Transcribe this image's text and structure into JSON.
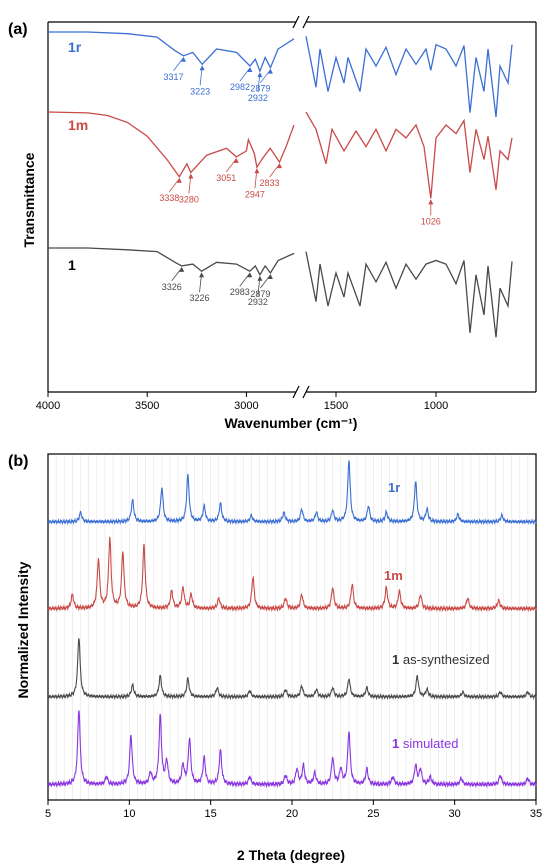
{
  "figure": {
    "panel_a_label": "(a)",
    "panel_b_label": "(b)"
  },
  "chart_data": [
    {
      "type": "line",
      "panel": "(a)",
      "xlabel": "Wavenumber (cm⁻¹)",
      "ylabel": "Transmittance",
      "x_reversed": true,
      "xlim": [
        4000,
        500
      ],
      "axis_break": [
        2750,
        1650
      ],
      "x_ticks": [
        4000,
        3500,
        3000,
        1500,
        1000
      ],
      "y_ticks": [],
      "grid": false,
      "series": [
        {
          "name": "1r",
          "color": "#3b6fd4",
          "name_color": "#3b6fd4",
          "points": [
            [
              4000,
              1.0
            ],
            [
              3800,
              1.0
            ],
            [
              3600,
              0.98
            ],
            [
              3450,
              0.94
            ],
            [
              3360,
              0.78
            ],
            [
              3317,
              0.72
            ],
            [
              3270,
              0.76
            ],
            [
              3223,
              0.62
            ],
            [
              3150,
              0.8
            ],
            [
              3050,
              0.76
            ],
            [
              2982,
              0.6
            ],
            [
              2955,
              0.68
            ],
            [
              2932,
              0.54
            ],
            [
              2905,
              0.7
            ],
            [
              2879,
              0.58
            ],
            [
              2840,
              0.8
            ],
            [
              2760,
              0.92
            ],
            [
              1650,
              0.95
            ],
            [
              1600,
              0.35
            ],
            [
              1580,
              0.8
            ],
            [
              1540,
              0.3
            ],
            [
              1500,
              0.7
            ],
            [
              1460,
              0.4
            ],
            [
              1440,
              0.7
            ],
            [
              1380,
              0.3
            ],
            [
              1350,
              0.8
            ],
            [
              1300,
              0.6
            ],
            [
              1250,
              0.82
            ],
            [
              1200,
              0.5
            ],
            [
              1150,
              0.8
            ],
            [
              1100,
              0.62
            ],
            [
              1050,
              0.8
            ],
            [
              1026,
              0.55
            ],
            [
              1000,
              0.85
            ],
            [
              950,
              0.8
            ],
            [
              900,
              0.6
            ],
            [
              860,
              0.84
            ],
            [
              830,
              0.05
            ],
            [
              800,
              0.7
            ],
            [
              760,
              0.3
            ],
            [
              740,
              0.8
            ],
            [
              700,
              0.0
            ],
            [
              680,
              0.6
            ],
            [
              640,
              0.4
            ],
            [
              620,
              0.85
            ]
          ],
          "annotations": [
            {
              "label": "3317",
              "x": 3317
            },
            {
              "label": "3223",
              "x": 3223
            },
            {
              "label": "2982",
              "x": 2982
            },
            {
              "label": "2932",
              "x": 2932
            },
            {
              "label": "2879",
              "x": 2879
            }
          ]
        },
        {
          "name": "1m",
          "color": "#c94a46",
          "name_color": "#c94a46",
          "points": [
            [
              4000,
              1.0
            ],
            [
              3800,
              0.99
            ],
            [
              3700,
              0.96
            ],
            [
              3600,
              0.88
            ],
            [
              3500,
              0.72
            ],
            [
              3400,
              0.45
            ],
            [
              3338,
              0.25
            ],
            [
              3300,
              0.4
            ],
            [
              3280,
              0.3
            ],
            [
              3200,
              0.5
            ],
            [
              3100,
              0.58
            ],
            [
              3051,
              0.48
            ],
            [
              3000,
              0.55
            ],
            [
              2990,
              0.68
            ],
            [
              2960,
              0.52
            ],
            [
              2947,
              0.36
            ],
            [
              2920,
              0.46
            ],
            [
              2880,
              0.58
            ],
            [
              2833,
              0.42
            ],
            [
              2800,
              0.6
            ],
            [
              2760,
              0.85
            ],
            [
              1650,
              1.0
            ],
            [
              1600,
              0.8
            ],
            [
              1550,
              0.4
            ],
            [
              1520,
              0.8
            ],
            [
              1460,
              0.55
            ],
            [
              1400,
              0.78
            ],
            [
              1350,
              0.6
            ],
            [
              1300,
              0.8
            ],
            [
              1250,
              0.55
            ],
            [
              1200,
              0.8
            ],
            [
              1150,
              0.7
            ],
            [
              1100,
              0.85
            ],
            [
              1060,
              0.6
            ],
            [
              1026,
              0.0
            ],
            [
              1000,
              0.7
            ],
            [
              950,
              0.85
            ],
            [
              900,
              0.75
            ],
            [
              860,
              0.9
            ],
            [
              830,
              0.3
            ],
            [
              800,
              0.8
            ],
            [
              760,
              0.45
            ],
            [
              740,
              0.72
            ],
            [
              700,
              0.1
            ],
            [
              680,
              0.55
            ],
            [
              640,
              0.45
            ],
            [
              620,
              0.7
            ]
          ],
          "annotations": [
            {
              "label": "3338",
              "x": 3338
            },
            {
              "label": "3280",
              "x": 3280
            },
            {
              "label": "3051",
              "x": 3051
            },
            {
              "label": "2947",
              "x": 2947
            },
            {
              "label": "2833",
              "x": 2833
            },
            {
              "label": "1026",
              "x": 1026
            }
          ]
        },
        {
          "name": "1",
          "color": "#4a4a4a",
          "name_color": "#000000",
          "points": [
            [
              4000,
              1.0
            ],
            [
              3800,
              1.0
            ],
            [
              3600,
              0.98
            ],
            [
              3450,
              0.96
            ],
            [
              3360,
              0.84
            ],
            [
              3326,
              0.8
            ],
            [
              3270,
              0.82
            ],
            [
              3226,
              0.74
            ],
            [
              3150,
              0.84
            ],
            [
              3050,
              0.82
            ],
            [
              2983,
              0.74
            ],
            [
              2955,
              0.8
            ],
            [
              2932,
              0.7
            ],
            [
              2905,
              0.8
            ],
            [
              2879,
              0.72
            ],
            [
              2840,
              0.86
            ],
            [
              2760,
              0.94
            ],
            [
              1650,
              0.96
            ],
            [
              1600,
              0.4
            ],
            [
              1580,
              0.82
            ],
            [
              1540,
              0.35
            ],
            [
              1500,
              0.72
            ],
            [
              1460,
              0.45
            ],
            [
              1440,
              0.72
            ],
            [
              1380,
              0.35
            ],
            [
              1350,
              0.82
            ],
            [
              1300,
              0.62
            ],
            [
              1250,
              0.84
            ],
            [
              1200,
              0.55
            ],
            [
              1150,
              0.82
            ],
            [
              1100,
              0.65
            ],
            [
              1050,
              0.82
            ],
            [
              1000,
              0.86
            ],
            [
              950,
              0.82
            ],
            [
              900,
              0.6
            ],
            [
              860,
              0.86
            ],
            [
              830,
              0.05
            ],
            [
              800,
              0.7
            ],
            [
              760,
              0.25
            ],
            [
              740,
              0.8
            ],
            [
              700,
              0.0
            ],
            [
              680,
              0.55
            ],
            [
              640,
              0.35
            ],
            [
              620,
              0.85
            ]
          ],
          "annotations": [
            {
              "label": "3326",
              "x": 3326
            },
            {
              "label": "3226",
              "x": 3226
            },
            {
              "label": "2983",
              "x": 2983
            },
            {
              "label": "2932",
              "x": 2932
            },
            {
              "label": "2879",
              "x": 2879
            }
          ]
        }
      ]
    },
    {
      "type": "line",
      "panel": "(b)",
      "xlabel": "2 Theta (degree)",
      "ylabel": "Normalized Intensity",
      "xlim": [
        5,
        35
      ],
      "x_ticks": [
        5,
        10,
        15,
        20,
        25,
        30,
        35
      ],
      "y_ticks": [],
      "grid": true,
      "grid_axis": "x",
      "series": [
        {
          "name": "1r",
          "label_bold_part": "",
          "label_rest": "1r",
          "color": "#3b6fd4",
          "peaks": [
            [
              7.0,
              0.15
            ],
            [
              10.2,
              0.35
            ],
            [
              12.0,
              0.55
            ],
            [
              13.6,
              0.75
            ],
            [
              14.6,
              0.25
            ],
            [
              15.6,
              0.3
            ],
            [
              17.5,
              0.1
            ],
            [
              19.5,
              0.15
            ],
            [
              20.6,
              0.2
            ],
            [
              21.5,
              0.15
            ],
            [
              22.5,
              0.18
            ],
            [
              23.5,
              1.0
            ],
            [
              24.7,
              0.25
            ],
            [
              25.8,
              0.15
            ],
            [
              27.6,
              0.65
            ],
            [
              28.3,
              0.2
            ],
            [
              30.2,
              0.12
            ],
            [
              32.9,
              0.1
            ]
          ]
        },
        {
          "name": "1m",
          "label_bold_part": "",
          "label_rest": "1m",
          "color": "#c94a46",
          "peaks": [
            [
              6.5,
              0.2
            ],
            [
              8.1,
              0.7
            ],
            [
              8.8,
              1.0
            ],
            [
              9.6,
              0.8
            ],
            [
              10.9,
              0.9
            ],
            [
              12.6,
              0.25
            ],
            [
              13.3,
              0.3
            ],
            [
              13.8,
              0.2
            ],
            [
              15.5,
              0.15
            ],
            [
              17.6,
              0.45
            ],
            [
              19.6,
              0.15
            ],
            [
              20.6,
              0.2
            ],
            [
              22.5,
              0.3
            ],
            [
              23.7,
              0.35
            ],
            [
              25.8,
              0.3
            ],
            [
              26.6,
              0.25
            ],
            [
              27.9,
              0.2
            ],
            [
              30.8,
              0.15
            ],
            [
              32.7,
              0.12
            ]
          ]
        },
        {
          "name": "1 as-synthesized",
          "label_bold_part": "1",
          "label_rest": " as-synthesized",
          "color": "#4a4a4a",
          "peaks": [
            [
              6.9,
              1.0
            ],
            [
              10.2,
              0.2
            ],
            [
              11.9,
              0.35
            ],
            [
              13.6,
              0.3
            ],
            [
              15.4,
              0.15
            ],
            [
              17.4,
              0.1
            ],
            [
              19.6,
              0.12
            ],
            [
              20.6,
              0.18
            ],
            [
              21.5,
              0.12
            ],
            [
              22.5,
              0.15
            ],
            [
              23.5,
              0.3
            ],
            [
              24.6,
              0.15
            ],
            [
              27.7,
              0.35
            ],
            [
              28.3,
              0.12
            ],
            [
              30.5,
              0.08
            ],
            [
              32.8,
              0.08
            ],
            [
              34.5,
              0.08
            ]
          ]
        },
        {
          "name": "1 simulated",
          "label_bold_part": "1",
          "label_rest": " simulated",
          "color": "#8a35e0",
          "peaks": [
            [
              6.9,
              1.0
            ],
            [
              8.6,
              0.1
            ],
            [
              10.1,
              0.65
            ],
            [
              11.3,
              0.15
            ],
            [
              11.9,
              0.9
            ],
            [
              12.3,
              0.3
            ],
            [
              13.3,
              0.25
            ],
            [
              13.7,
              0.6
            ],
            [
              14.6,
              0.35
            ],
            [
              15.6,
              0.45
            ],
            [
              17.4,
              0.1
            ],
            [
              19.6,
              0.12
            ],
            [
              20.3,
              0.2
            ],
            [
              20.7,
              0.25
            ],
            [
              21.4,
              0.15
            ],
            [
              22.5,
              0.35
            ],
            [
              23.0,
              0.2
            ],
            [
              23.5,
              0.7
            ],
            [
              24.6,
              0.2
            ],
            [
              26.2,
              0.1
            ],
            [
              27.6,
              0.25
            ],
            [
              27.9,
              0.2
            ],
            [
              28.5,
              0.1
            ],
            [
              30.4,
              0.08
            ],
            [
              32.8,
              0.12
            ],
            [
              34.5,
              0.08
            ]
          ]
        }
      ]
    }
  ]
}
